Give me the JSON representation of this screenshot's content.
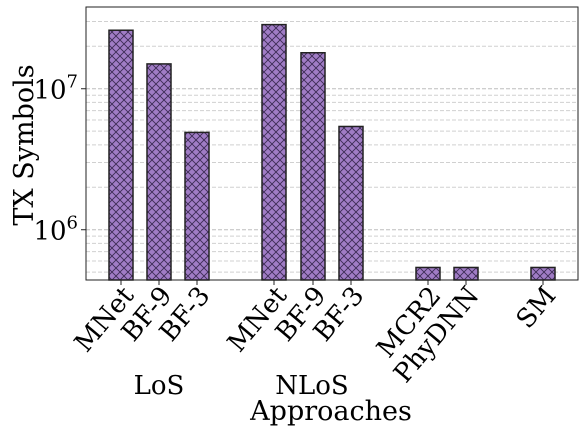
{
  "chart_data": {
    "type": "bar",
    "title": "",
    "xlabel": "Approaches",
    "ylabel": "TX Symbols",
    "yscale": "log",
    "ylim": [
      440000,
      38000000
    ],
    "grid": "y-major-and-minor-dashed",
    "colors": {
      "bar_fill": "#a07cc5",
      "hatch": "#3d2b56",
      "edge": "#222222"
    },
    "y_ticks": [
      {
        "value": 1000000,
        "label": "10^6",
        "base": "10",
        "exp": "6"
      },
      {
        "value": 10000000,
        "label": "10^7",
        "base": "10",
        "exp": "7"
      }
    ],
    "categories": [
      "MNet",
      "BF-9",
      "BF-3",
      "MNet",
      "BF-9",
      "BF-3",
      "MCR2",
      "PhyDNN",
      "SM"
    ],
    "groups": [
      "LoS",
      "LoS",
      "LoS",
      "NLoS",
      "NLoS",
      "NLoS",
      "",
      "",
      ""
    ],
    "group_labels": [
      "LoS",
      "NLoS"
    ],
    "values": [
      26000000,
      15000000,
      4900000,
      28500000,
      18000000,
      5400000,
      540000,
      540000,
      540000
    ]
  }
}
